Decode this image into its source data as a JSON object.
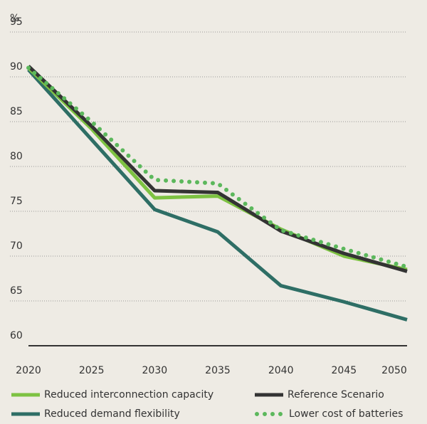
{
  "chart_data": {
    "type": "line",
    "y_label": "%",
    "x": [
      2020,
      2025,
      2030,
      2035,
      2040,
      2045,
      2050
    ],
    "xlim": [
      2020,
      2050
    ],
    "xticks": [
      2020,
      2025,
      2030,
      2035,
      2040,
      2045,
      2050
    ],
    "ylim": [
      60,
      95
    ],
    "yticks": [
      60,
      65,
      70,
      75,
      80,
      85,
      90,
      95
    ],
    "grid": true,
    "legend": "bottom",
    "series": [
      {
        "name": "Reduced interconnection capacity",
        "color": "#7dc242",
        "style": "solid",
        "values": [
          91,
          84.2,
          76.5,
          76.7,
          73,
          70,
          68.5
        ]
      },
      {
        "name": "Reference Scenario",
        "color": "#333333",
        "style": "solid",
        "values": [
          91.2,
          84.5,
          77.3,
          77.1,
          72.8,
          70.3,
          68.3
        ]
      },
      {
        "name": "Reduced demand flexibility",
        "color": "#2e6e65",
        "style": "solid",
        "values": [
          90.8,
          83,
          75.2,
          72.7,
          66.7,
          64.9,
          62.9
        ]
      },
      {
        "name": "Lower cost of batteries",
        "color": "#5cb85c",
        "style": "dotted",
        "values": [
          91,
          85,
          78.5,
          78.1,
          72.9,
          70.8,
          68.8
        ]
      }
    ]
  }
}
